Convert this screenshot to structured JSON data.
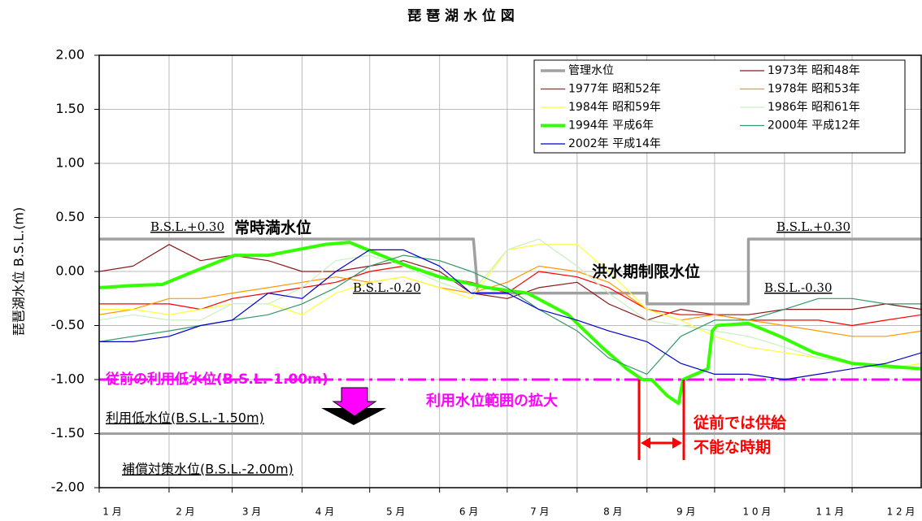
{
  "chart_data": {
    "type": "line",
    "title": "琵 琶 湖 水 位 図",
    "y_label": "琵琶湖水位 B.S.L.(m)",
    "xlim": [
      0,
      365
    ],
    "ylim": [
      -2,
      2
    ],
    "xticks": [
      {
        "value": 0,
        "label": "1 月"
      },
      {
        "value": 31,
        "label": "2 月"
      },
      {
        "value": 59,
        "label": "3 月"
      },
      {
        "value": 90,
        "label": "4 月"
      },
      {
        "value": 120,
        "label": "5 月"
      },
      {
        "value": 151,
        "label": "6 月"
      },
      {
        "value": 181,
        "label": "7 月"
      },
      {
        "value": 212,
        "label": "8 月"
      },
      {
        "value": 243,
        "label": "9 月"
      },
      {
        "value": 273,
        "label": "1 0 月"
      },
      {
        "value": 304,
        "label": "1 1 月"
      },
      {
        "value": 334,
        "label": "1 2 月"
      }
    ],
    "yticks": [
      {
        "value": 2,
        "label": "2.00"
      },
      {
        "value": 1.5,
        "label": "1.50"
      },
      {
        "value": 1,
        "label": "1.00"
      },
      {
        "value": 0.5,
        "label": "0.50"
      },
      {
        "value": 0,
        "label": "0.00"
      },
      {
        "value": -0.5,
        "label": "-0.50"
      },
      {
        "value": -1,
        "label": "-1.00"
      },
      {
        "value": -1.5,
        "label": "-1.50"
      },
      {
        "value": -2,
        "label": "-2.00"
      }
    ],
    "grid": true,
    "series": [
      {
        "name": "管理水位",
        "color": "#a0a0a0",
        "width": 3.5,
        "x": [
          0,
          166,
          168,
          243,
          243,
          288,
          288,
          365
        ],
        "values": [
          0.3,
          0.3,
          -0.2,
          -0.2,
          -0.3,
          -0.3,
          0.3,
          0.3
        ]
      },
      {
        "name": "1973年 昭和48年",
        "color": "#8b1a1a",
        "width": 1.2,
        "x": [
          0,
          15,
          31,
          45,
          59,
          75,
          90,
          105,
          120,
          135,
          151,
          165,
          181,
          195,
          212,
          226,
          243,
          258,
          273,
          288,
          304,
          319,
          334,
          349,
          365
        ],
        "values": [
          0.0,
          0.05,
          0.25,
          0.1,
          0.15,
          0.1,
          0.0,
          0.0,
          0.05,
          0.1,
          0.0,
          -0.2,
          -0.25,
          -0.15,
          -0.1,
          -0.3,
          -0.45,
          -0.35,
          -0.4,
          -0.4,
          -0.35,
          -0.35,
          -0.35,
          -0.3,
          -0.35
        ]
      },
      {
        "name": "1977年 昭和52年",
        "color": "#ff0000",
        "width": 1.2,
        "x": [
          0,
          15,
          31,
          45,
          59,
          75,
          90,
          105,
          120,
          135,
          151,
          165,
          181,
          195,
          212,
          226,
          243,
          258,
          273,
          288,
          304,
          319,
          334,
          349,
          365
        ],
        "values": [
          -0.3,
          -0.3,
          -0.3,
          -0.35,
          -0.25,
          -0.2,
          -0.15,
          -0.1,
          0.0,
          0.05,
          -0.05,
          -0.1,
          -0.2,
          0.0,
          -0.05,
          -0.15,
          -0.35,
          -0.4,
          -0.4,
          -0.45,
          -0.45,
          -0.45,
          -0.5,
          -0.45,
          -0.4
        ]
      },
      {
        "name": "1978年 昭和53年",
        "color": "#ff9900",
        "width": 1.2,
        "x": [
          0,
          15,
          31,
          45,
          59,
          75,
          90,
          105,
          120,
          135,
          151,
          165,
          181,
          195,
          212,
          226,
          243,
          258,
          273,
          288,
          304,
          319,
          334,
          349,
          365
        ],
        "values": [
          -0.4,
          -0.35,
          -0.25,
          -0.25,
          -0.2,
          -0.15,
          -0.1,
          -0.05,
          -0.1,
          -0.05,
          -0.15,
          -0.2,
          -0.1,
          0.05,
          0.0,
          -0.1,
          -0.35,
          -0.45,
          -0.4,
          -0.45,
          -0.5,
          -0.55,
          -0.6,
          -0.6,
          -0.55
        ]
      },
      {
        "name": "1984年 昭和59年",
        "color": "#ffff33",
        "width": 1.2,
        "x": [
          0,
          15,
          31,
          45,
          59,
          75,
          90,
          105,
          120,
          135,
          151,
          165,
          181,
          195,
          212,
          226,
          243,
          258,
          273,
          288,
          304,
          319,
          334,
          349,
          365
        ],
        "values": [
          -0.35,
          -0.35,
          -0.4,
          -0.35,
          -0.3,
          -0.3,
          -0.4,
          -0.2,
          -0.1,
          -0.05,
          -0.15,
          -0.25,
          0.2,
          0.25,
          0.25,
          0.0,
          -0.35,
          -0.45,
          -0.6,
          -0.7,
          -0.75,
          -0.8,
          -0.85,
          -0.9,
          -0.85
        ]
      },
      {
        "name": "1986年 昭和61年",
        "color": "#c8f0c0",
        "width": 1.2,
        "x": [
          0,
          15,
          31,
          45,
          59,
          75,
          90,
          105,
          120,
          135,
          151,
          165,
          181,
          195,
          212,
          226,
          243,
          258,
          273,
          288,
          304,
          319,
          334,
          349,
          365
        ],
        "values": [
          -0.45,
          -0.4,
          -0.45,
          -0.45,
          -0.3,
          -0.3,
          -0.15,
          0.1,
          0.15,
          0.05,
          -0.1,
          -0.2,
          0.2,
          0.3,
          0.05,
          -0.2,
          -0.45,
          -0.5,
          -0.55,
          -0.6,
          -0.7,
          -0.8,
          -0.85,
          -0.9,
          -0.9
        ]
      },
      {
        "name": "1994年 平成6年",
        "color": "#33ff00",
        "width": 4,
        "x": [
          0,
          15,
          28,
          42,
          60,
          75,
          100,
          111,
          125,
          137,
          151,
          172,
          190,
          208,
          223,
          234,
          241,
          245,
          252,
          257,
          259,
          270,
          272,
          274,
          288,
          302,
          317,
          334,
          352,
          365
        ],
        "values": [
          -0.15,
          -0.13,
          -0.12,
          0.0,
          0.15,
          0.15,
          0.25,
          0.27,
          0.15,
          0.05,
          -0.05,
          -0.15,
          -0.2,
          -0.4,
          -0.7,
          -0.9,
          -1.0,
          -1.0,
          -1.15,
          -1.22,
          -1.0,
          -0.9,
          -0.55,
          -0.5,
          -0.48,
          -0.6,
          -0.75,
          -0.85,
          -0.88,
          -0.9
        ]
      },
      {
        "name": "2000年 平成12年",
        "color": "#339966",
        "width": 1.2,
        "x": [
          0,
          15,
          31,
          45,
          59,
          75,
          90,
          105,
          120,
          135,
          151,
          165,
          181,
          195,
          212,
          226,
          243,
          258,
          273,
          288,
          304,
          319,
          334,
          349,
          365
        ],
        "values": [
          -0.65,
          -0.6,
          -0.55,
          -0.5,
          -0.45,
          -0.4,
          -0.3,
          -0.15,
          0.05,
          0.15,
          0.1,
          0.0,
          -0.15,
          -0.35,
          -0.55,
          -0.8,
          -0.95,
          -0.6,
          -0.45,
          -0.45,
          -0.35,
          -0.25,
          -0.25,
          -0.3,
          -0.3
        ]
      },
      {
        "name": "2002年 平成14年",
        "color": "#0000cc",
        "width": 1.2,
        "x": [
          0,
          15,
          31,
          45,
          59,
          75,
          90,
          105,
          120,
          135,
          151,
          165,
          181,
          195,
          212,
          226,
          243,
          258,
          273,
          288,
          304,
          319,
          334,
          349,
          365
        ],
        "values": [
          -0.65,
          -0.65,
          -0.6,
          -0.5,
          -0.45,
          -0.2,
          -0.25,
          0.0,
          0.2,
          0.2,
          0.05,
          -0.2,
          -0.2,
          -0.35,
          -0.45,
          -0.55,
          -0.65,
          -0.85,
          -0.95,
          -0.95,
          -1.0,
          -0.95,
          -0.9,
          -0.85,
          -0.75
        ]
      }
    ],
    "hlines": [
      {
        "value": -1,
        "color": "#ff00ff"
      },
      {
        "value": -1.5,
        "color": "#a0a0a0"
      }
    ],
    "annotations": [
      "B.S.L.+0.30",
      "常時満水位",
      "B.S.L.-0.20",
      "洪水期制限水位",
      "B.S.L.+0.30",
      "B.S.L.-0.30",
      "従前の利用低水位(B.S.L.-1.00m)",
      "利用低水位(B.S.L.-1.50m)",
      "補償対策水位(B.S.L.-2.00m)",
      "利用水位範囲の拡大",
      "従前では供給",
      "不能な時期"
    ]
  }
}
